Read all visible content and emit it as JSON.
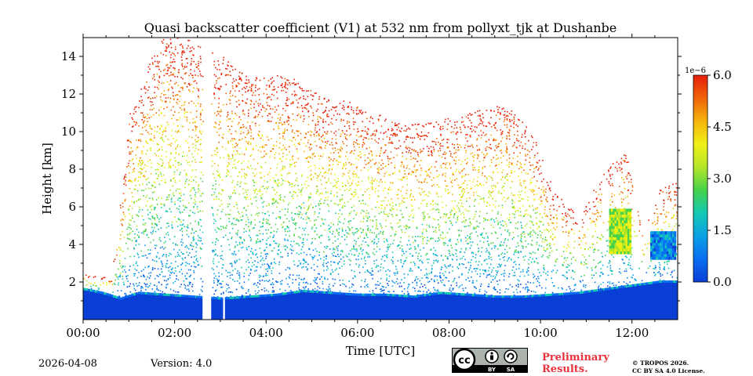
{
  "chart_data": {
    "type": "heatmap",
    "title": "Quasi backscatter coefficient (V1) at 532 nm from pollyxt_tjk at Dushanbe",
    "xlabel": "Time [UTC]",
    "ylabel": "Height [km]",
    "xlim": [
      0,
      13
    ],
    "ylim": [
      0,
      15
    ],
    "x_ticks": [
      0,
      2,
      4,
      6,
      8,
      10,
      12
    ],
    "x_tick_labels": [
      "00:00",
      "02:00",
      "04:00",
      "06:00",
      "08:00",
      "10:00",
      "12:00"
    ],
    "y_ticks": [
      2,
      4,
      6,
      8,
      10,
      12,
      14
    ],
    "y_tick_labels": [
      "2",
      "4",
      "6",
      "8",
      "10",
      "12",
      "14"
    ],
    "colorbar": {
      "min": 0.0,
      "max": 6.0,
      "scale_label": "1e−6",
      "ticks": [
        0.0,
        1.5,
        3.0,
        4.5,
        6.0
      ],
      "tick_labels": [
        "0.0",
        "1.5",
        "3.0",
        "4.5",
        "6.0"
      ],
      "colormap": [
        "#0a3fd6",
        "#0a6ef0",
        "#0aa0e6",
        "#14c8b4",
        "#46d24a",
        "#b4e628",
        "#f0f014",
        "#f5b40a",
        "#f0640a",
        "#e61e0a"
      ]
    },
    "gaps_utc": [
      [
        2.62,
        2.78
      ],
      [
        3.05,
        3.12
      ]
    ],
    "sparse_columns_utc": [
      [
        10.35,
        10.45
      ],
      [
        10.75,
        10.85
      ],
      [
        11.0,
        11.1
      ],
      [
        11.35,
        11.45
      ],
      [
        11.6,
        11.7
      ],
      [
        12.0,
        12.45
      ]
    ],
    "boundary_layer_top_km": [
      [
        0.0,
        1.6
      ],
      [
        0.4,
        1.4
      ],
      [
        0.8,
        1.1
      ],
      [
        1.2,
        1.4
      ],
      [
        1.8,
        1.3
      ],
      [
        2.4,
        1.2
      ],
      [
        3.0,
        1.1
      ],
      [
        3.6,
        1.2
      ],
      [
        4.2,
        1.3
      ],
      [
        4.8,
        1.5
      ],
      [
        5.4,
        1.4
      ],
      [
        6.0,
        1.3
      ],
      [
        6.6,
        1.3
      ],
      [
        7.2,
        1.2
      ],
      [
        7.8,
        1.4
      ],
      [
        8.4,
        1.3
      ],
      [
        9.0,
        1.2
      ],
      [
        9.6,
        1.2
      ],
      [
        10.2,
        1.3
      ],
      [
        10.8,
        1.4
      ],
      [
        11.4,
        1.6
      ],
      [
        12.0,
        1.8
      ],
      [
        12.6,
        2.0
      ],
      [
        13.0,
        2.0
      ]
    ],
    "signal_top_km": [
      [
        0.0,
        2.5
      ],
      [
        0.6,
        2.2
      ],
      [
        1.0,
        11.0
      ],
      [
        1.6,
        15.0
      ],
      [
        2.2,
        15.0
      ],
      [
        3.0,
        14.0
      ],
      [
        3.6,
        13.0
      ],
      [
        4.4,
        13.0
      ],
      [
        5.2,
        12.0
      ],
      [
        6.0,
        11.5
      ],
      [
        6.8,
        10.5
      ],
      [
        7.6,
        10.5
      ],
      [
        8.4,
        11.0
      ],
      [
        9.2,
        11.5
      ],
      [
        9.8,
        10.0
      ],
      [
        10.2,
        7.0
      ],
      [
        10.8,
        5.5
      ],
      [
        11.4,
        8.0
      ],
      [
        11.8,
        9.0
      ],
      [
        12.2,
        5.0
      ],
      [
        12.6,
        7.0
      ],
      [
        13.0,
        7.5
      ]
    ],
    "elevated_layers": [
      {
        "t_start": 11.5,
        "t_end": 11.95,
        "bottom_km": 3.5,
        "top_km": 5.8,
        "level": 0.55
      },
      {
        "t_start": 12.4,
        "t_end": 12.95,
        "bottom_km": 3.2,
        "top_km": 4.6,
        "level": 0.2
      }
    ]
  },
  "footer": {
    "date": "2026-04-08",
    "version": "Version: 4.0",
    "preliminary_line1": "Preliminary",
    "preliminary_line2": "Results.",
    "copyright_line1": "© TROPOS 2026.",
    "copyright_line2": "CC BY SA 4.0 License.",
    "license_badge": {
      "left": "BY",
      "right": "SA"
    }
  }
}
